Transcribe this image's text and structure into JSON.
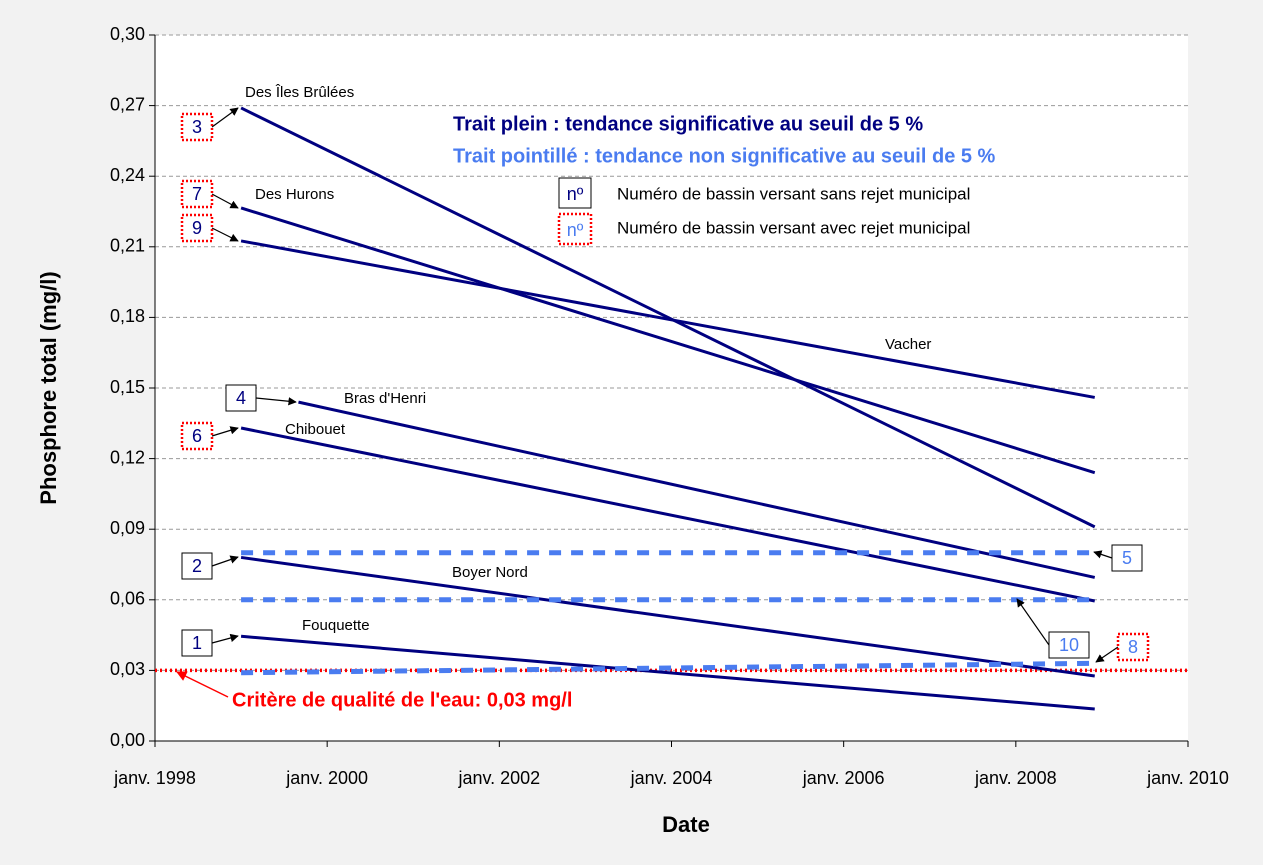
{
  "chart_data": {
    "type": "line",
    "y_label": "Phosphore total (mg/l)",
    "x_label": "Date",
    "xlim": [
      "1998-01",
      "2010-01"
    ],
    "xticks": [
      {
        "value": "1998-01",
        "label": "janv. 1998"
      },
      {
        "value": "2000-01",
        "label": "janv. 2000"
      },
      {
        "value": "2002-01",
        "label": "janv. 2002"
      },
      {
        "value": "2004-01",
        "label": "janv. 2004"
      },
      {
        "value": "2006-01",
        "label": "janv. 2006"
      },
      {
        "value": "2008-01",
        "label": "janv. 2008"
      },
      {
        "value": "2010-01",
        "label": "janv. 2010"
      }
    ],
    "ylim": [
      0,
      0.3
    ],
    "yticks": [
      {
        "value": 0,
        "label": "0,00"
      },
      {
        "value": 0.03,
        "label": "0,03"
      },
      {
        "value": 0.06,
        "label": "0,06"
      },
      {
        "value": 0.09,
        "label": "0,09"
      },
      {
        "value": 0.12,
        "label": "0,12"
      },
      {
        "value": 0.15,
        "label": "0,15"
      },
      {
        "value": 0.18,
        "label": "0,18"
      },
      {
        "value": 0.21,
        "label": "0,21"
      },
      {
        "value": 0.24,
        "label": "0,24"
      },
      {
        "value": 0.27,
        "label": "0,27"
      },
      {
        "value": 0.3,
        "label": "0,30"
      }
    ],
    "grid": true,
    "legend": {
      "solid": "Trait plein :  tendance significative au seuil de 5 %",
      "dashed": "Trait pointillé :  tendance non significative au seuil de 5 %",
      "key_symbol": "nº",
      "without_municipal": "Numéro de bassin versant sans rejet municipal",
      "with_municipal": "Numéro de bassin versant avec rejet municipal"
    },
    "criterion": {
      "label": "Critère de qualité de l'eau: 0,03 mg/l",
      "value": 0.03,
      "color": "#ff0000"
    },
    "series": [
      {
        "name": "Des Îles Brûlées",
        "number": "3",
        "municipal": true,
        "dashed": false,
        "color": "#000080",
        "x": [
          "1999-01",
          "2008-12"
        ],
        "values": [
          0.269,
          0.091
        ]
      },
      {
        "name": "Des Hurons",
        "number": "7",
        "municipal": true,
        "dashed": false,
        "color": "#000080",
        "x": [
          "1999-01",
          "2008-12"
        ],
        "values": [
          0.2265,
          0.114
        ]
      },
      {
        "name": "Vacher",
        "number": "9",
        "municipal": true,
        "dashed": false,
        "color": "#000080",
        "x": [
          "1999-01",
          "2008-12"
        ],
        "values": [
          0.2125,
          0.146
        ]
      },
      {
        "name": "Bras d'Henri",
        "number": "4",
        "municipal": false,
        "dashed": false,
        "color": "#000080",
        "x": [
          "1999-09",
          "2008-12"
        ],
        "values": [
          0.144,
          0.0695
        ]
      },
      {
        "name": "Chibouet",
        "number": "6",
        "municipal": true,
        "dashed": false,
        "color": "#000080",
        "x": [
          "1999-01",
          "2008-12"
        ],
        "values": [
          0.133,
          0.0595
        ]
      },
      {
        "name": "Boyer Nord",
        "number": "2",
        "municipal": false,
        "dashed": false,
        "color": "#000080",
        "x": [
          "1999-01",
          "2008-12"
        ],
        "values": [
          0.078,
          0.0276
        ]
      },
      {
        "name": "Fouquette",
        "number": "1",
        "municipal": false,
        "dashed": false,
        "color": "#000080",
        "x": [
          "1999-01",
          "2008-12"
        ],
        "values": [
          0.0445,
          0.0136
        ]
      },
      {
        "number": "5",
        "municipal": false,
        "dashed": true,
        "color": "#4a7cf0",
        "x": [
          "1999-01",
          "2008-12"
        ],
        "values": [
          0.08,
          0.08
        ]
      },
      {
        "number": "10",
        "municipal": false,
        "dashed": true,
        "color": "#4a7cf0",
        "x": [
          "1999-01",
          "2008-12"
        ],
        "values": [
          0.06,
          0.06
        ]
      },
      {
        "number": "8",
        "municipal": true,
        "dashed": true,
        "color": "#4a7cf0",
        "x": [
          "1999-01",
          "2008-12"
        ],
        "values": [
          0.029,
          0.033
        ]
      }
    ]
  }
}
